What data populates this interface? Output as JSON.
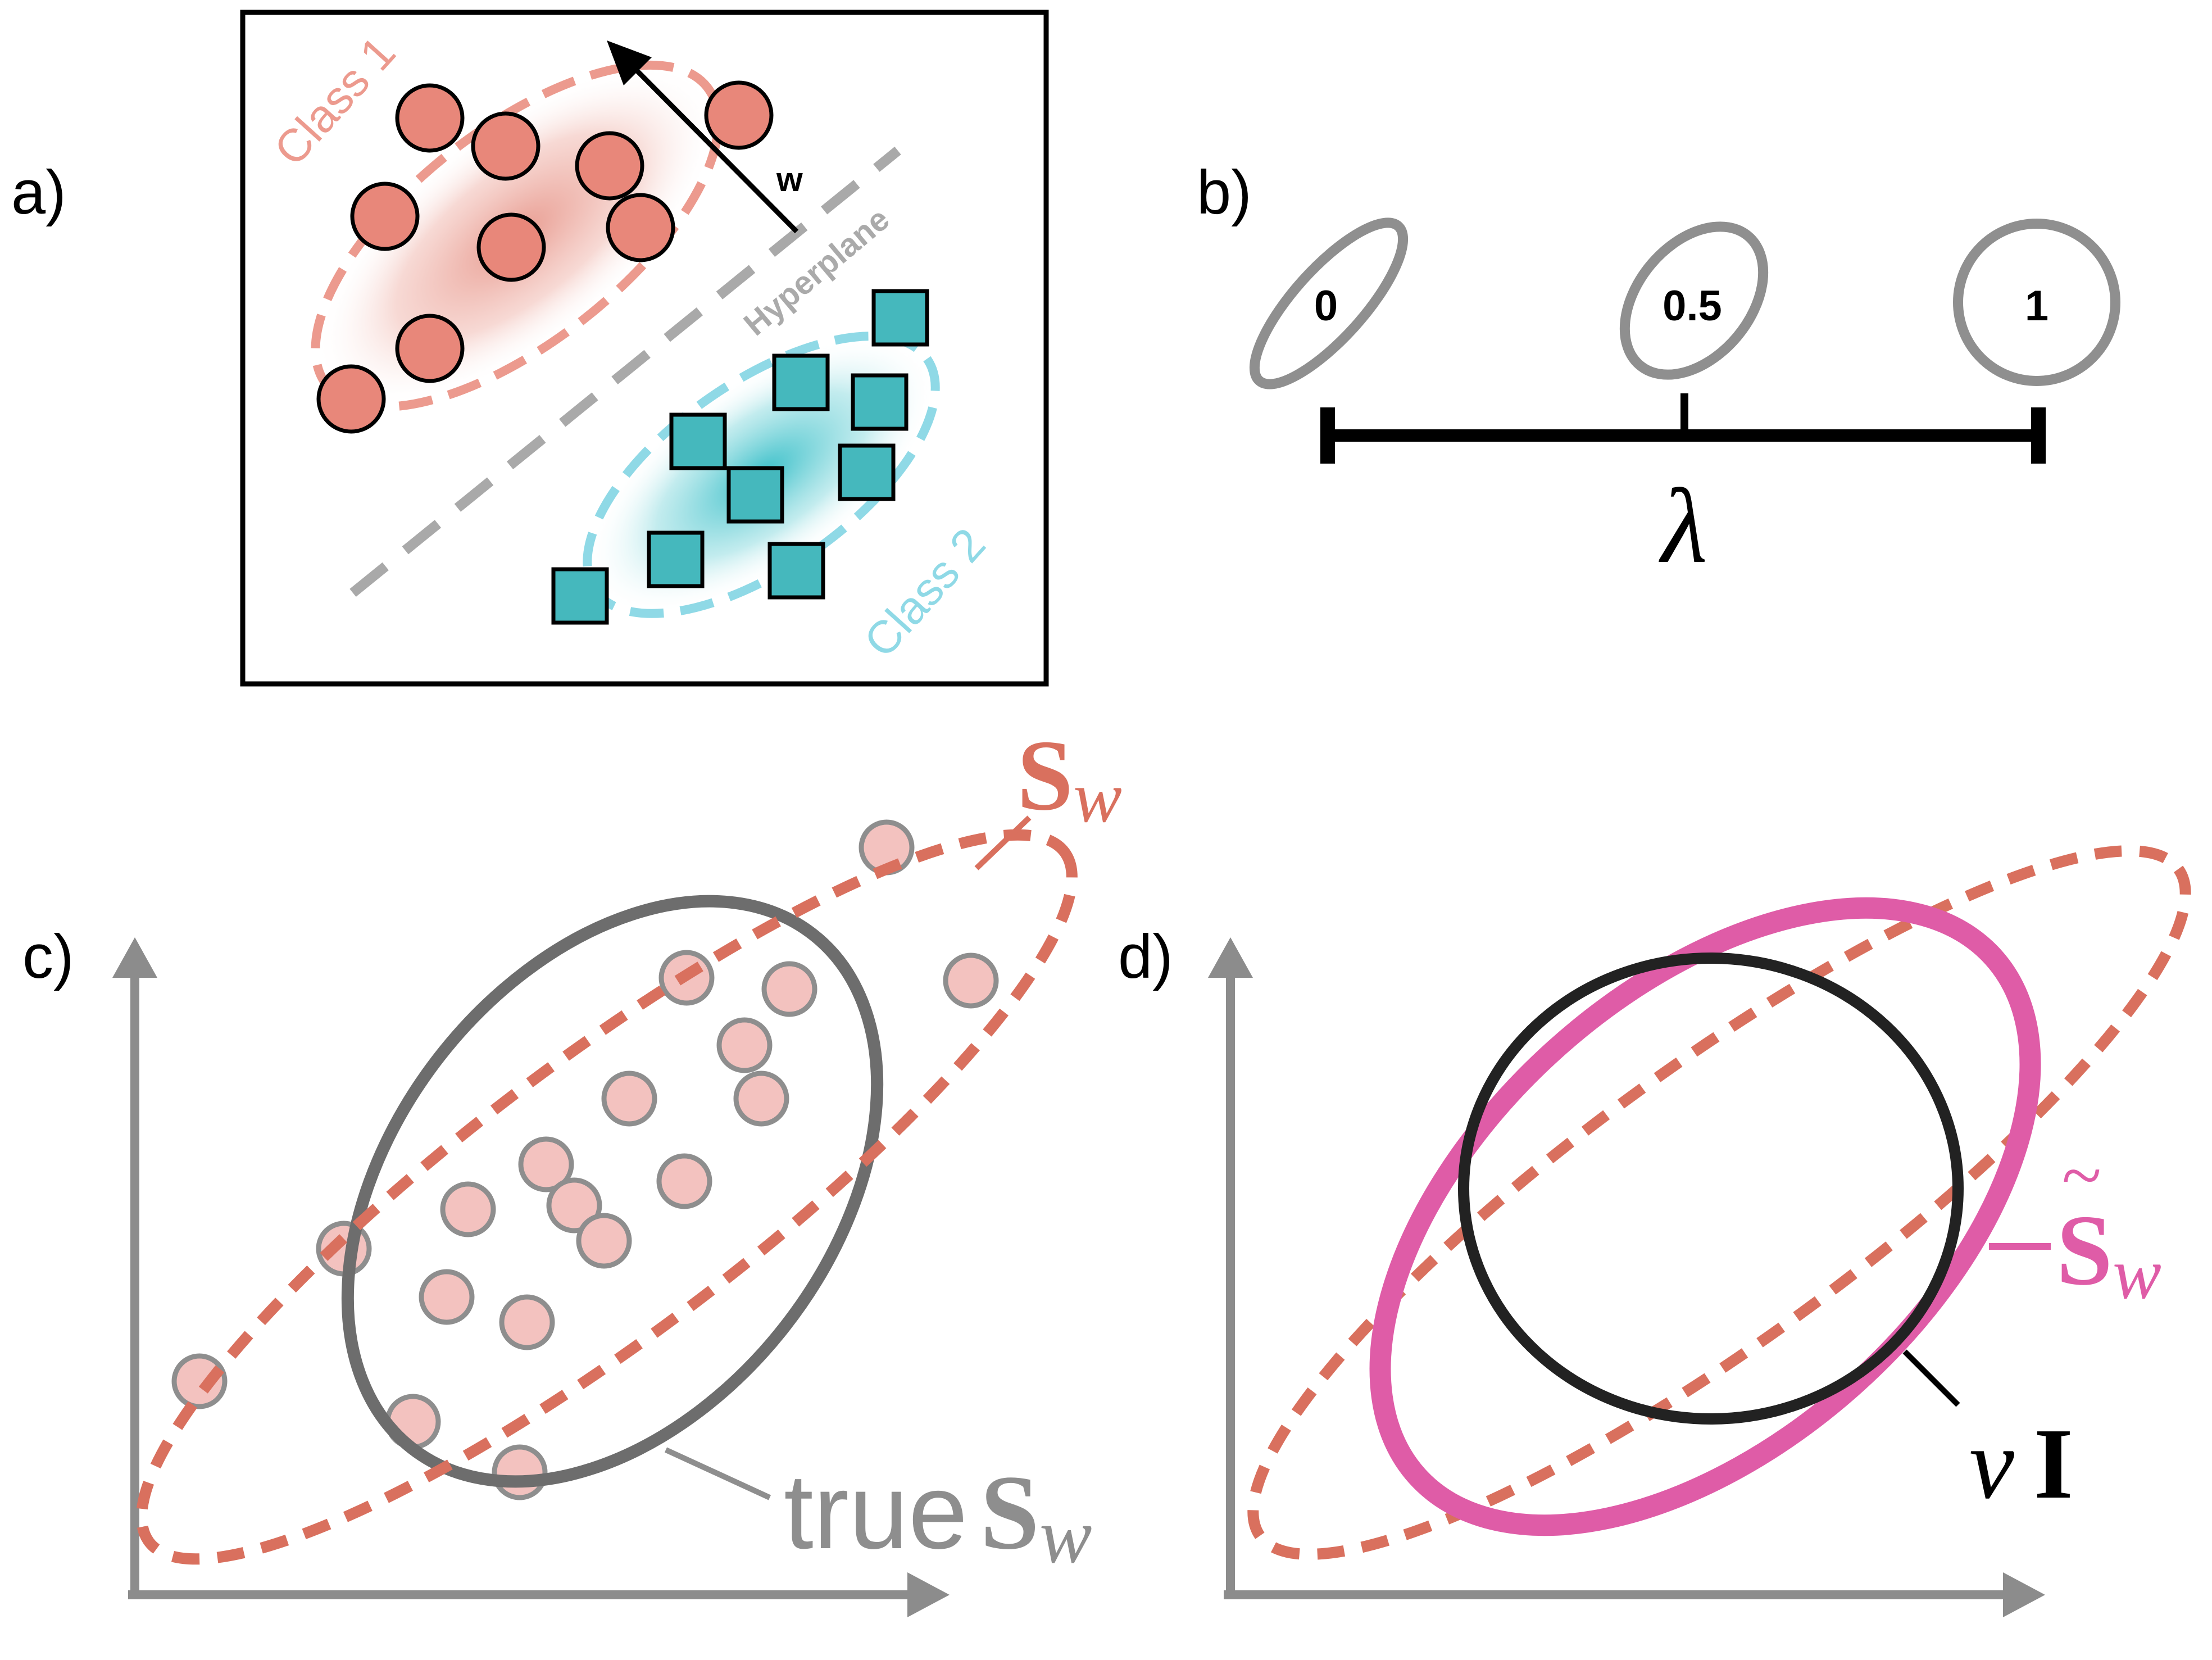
{
  "panel_a": {
    "label": "a)",
    "class1_label": "Class 1",
    "class2_label": "Class 2",
    "hyperplane_label": "Hyperplane",
    "weight_label": "w",
    "colors": {
      "class1": "#e8877a",
      "class2": "#45b8bd",
      "hyperplane": "#a9a9a9"
    }
  },
  "panel_b": {
    "label": "b)",
    "axis_symbol": "λ",
    "markers": [
      "0",
      "0.5",
      "1"
    ]
  },
  "panel_c": {
    "label": "c)",
    "sw_symbol": "S",
    "sw_subscript": "w",
    "true_word": "true",
    "true_sw_symbol": "S",
    "true_sw_subscript": "w"
  },
  "panel_d": {
    "label": "d)",
    "shrunk_symbol": "S",
    "shrunk_tilde": "~",
    "shrunk_subscript": "w",
    "nu_symbol": "ν",
    "identity_symbol": "I",
    "colors": {
      "shrunk": "#df5ca7",
      "identity": "#222222",
      "sw": "#d9705e"
    }
  }
}
